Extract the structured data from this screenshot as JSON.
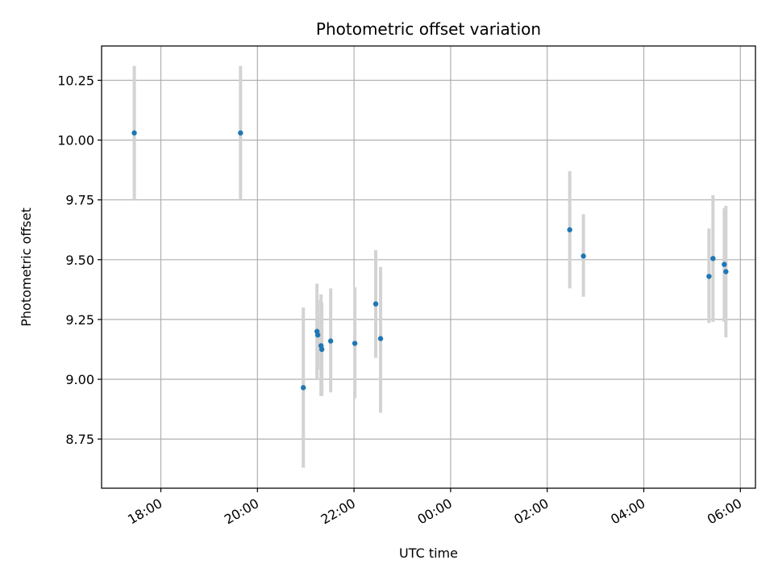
{
  "chart_data": {
    "type": "scatter",
    "title": "Photometric offset variation",
    "xlabel": "UTC time",
    "ylabel": "Photometric offset",
    "x_tick_labels": [
      "18:00",
      "20:00",
      "22:00",
      "00:00",
      "02:00",
      "04:00",
      "06:00"
    ],
    "y_tick_labels": [
      "8.75",
      "9.00",
      "9.25",
      "9.50",
      "9.75",
      "10.00",
      "10.25"
    ],
    "ylim": [
      8.55,
      10.4
    ],
    "grid": true,
    "point_color": "#1f77b4",
    "errorbar_color": "#d3d3d3",
    "series": [
      {
        "points": [
          {
            "x": "17:27",
            "y": 10.03,
            "ylow": 9.75,
            "yhigh": 10.31
          },
          {
            "x": "19:39",
            "y": 10.03,
            "ylow": 9.75,
            "yhigh": 10.31
          },
          {
            "x": "20:57",
            "y": 8.965,
            "ylow": 8.63,
            "yhigh": 9.3
          },
          {
            "x": "21:14",
            "y": 9.2,
            "ylow": 9.0,
            "yhigh": 9.4
          },
          {
            "x": "21:15",
            "y": 9.185,
            "ylow": 9.04,
            "yhigh": 9.33
          },
          {
            "x": "21:19",
            "y": 9.14,
            "ylow": 8.93,
            "yhigh": 9.355
          },
          {
            "x": "21:20",
            "y": 9.125,
            "ylow": 8.93,
            "yhigh": 9.32
          },
          {
            "x": "21:31",
            "y": 9.16,
            "ylow": 8.945,
            "yhigh": 9.38
          },
          {
            "x": "22:01",
            "y": 9.15,
            "ylow": 8.92,
            "yhigh": 9.385
          },
          {
            "x": "22:27",
            "y": 9.315,
            "ylow": 9.09,
            "yhigh": 9.54
          },
          {
            "x": "22:33",
            "y": 9.17,
            "ylow": 8.86,
            "yhigh": 9.47
          },
          {
            "x": "02:28",
            "y": 9.625,
            "ylow": 9.38,
            "yhigh": 9.87
          },
          {
            "x": "02:45",
            "y": 9.515,
            "ylow": 9.345,
            "yhigh": 9.69
          },
          {
            "x": "05:21",
            "y": 9.43,
            "ylow": 9.235,
            "yhigh": 9.63
          },
          {
            "x": "05:26",
            "y": 9.505,
            "ylow": 9.24,
            "yhigh": 9.77
          },
          {
            "x": "05:40",
            "y": 9.48,
            "ylow": 9.24,
            "yhigh": 9.715
          },
          {
            "x": "05:42",
            "y": 9.45,
            "ylow": 9.175,
            "yhigh": 9.725
          }
        ]
      }
    ]
  }
}
